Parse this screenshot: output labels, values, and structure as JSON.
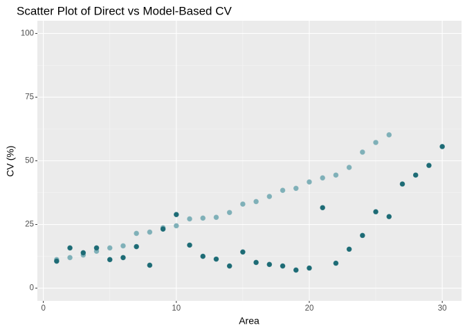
{
  "chart_data": {
    "type": "scatter",
    "title": "Scatter Plot of Direct vs Model-Based CV",
    "x_label": "Area",
    "y_label": "CV (%)",
    "xlim": [
      -0.45,
      31.45
    ],
    "ylim": [
      -5,
      105
    ],
    "xticks": [
      0,
      10,
      20,
      30
    ],
    "yticks": [
      0,
      25,
      50,
      75,
      100
    ],
    "grid": true,
    "minor_grid": true,
    "series": [
      {
        "color": "#7fb0b8",
        "x": [
          1,
          2,
          3,
          4,
          5,
          6,
          7,
          8,
          9,
          10,
          11,
          12,
          13,
          14,
          15,
          16,
          17,
          18,
          19,
          20,
          21,
          22,
          23,
          24,
          25,
          26
        ],
        "values": [
          11.2,
          12,
          13,
          14.5,
          15.8,
          16.6,
          21.5,
          22,
          23.7,
          24.5,
          27.2,
          27.5,
          27.8,
          29.7,
          33,
          34,
          36,
          38.4,
          39.2,
          41.7,
          43.3,
          44.4,
          47.4,
          53.4,
          57.2,
          60.2
        ]
      },
      {
        "color": "#1d6b75",
        "x": [
          1,
          2,
          3,
          4,
          5,
          6,
          7,
          8,
          9,
          10,
          11,
          12,
          13,
          14,
          15,
          16,
          17,
          18,
          19,
          20,
          21,
          22,
          23,
          24,
          25,
          26,
          27,
          28,
          29,
          30
        ],
        "values": [
          10.6,
          15.8,
          13.9,
          15.8,
          11.2,
          12,
          16.3,
          9,
          23.2,
          28.9,
          16.9,
          12.5,
          11.4,
          8.7,
          14.2,
          10.1,
          9.3,
          8.7,
          7.1,
          7.9,
          31.6,
          9.8,
          15.3,
          20.7,
          30,
          28.1,
          40.9,
          44.4,
          48.2,
          55.6
        ]
      }
    ]
  }
}
